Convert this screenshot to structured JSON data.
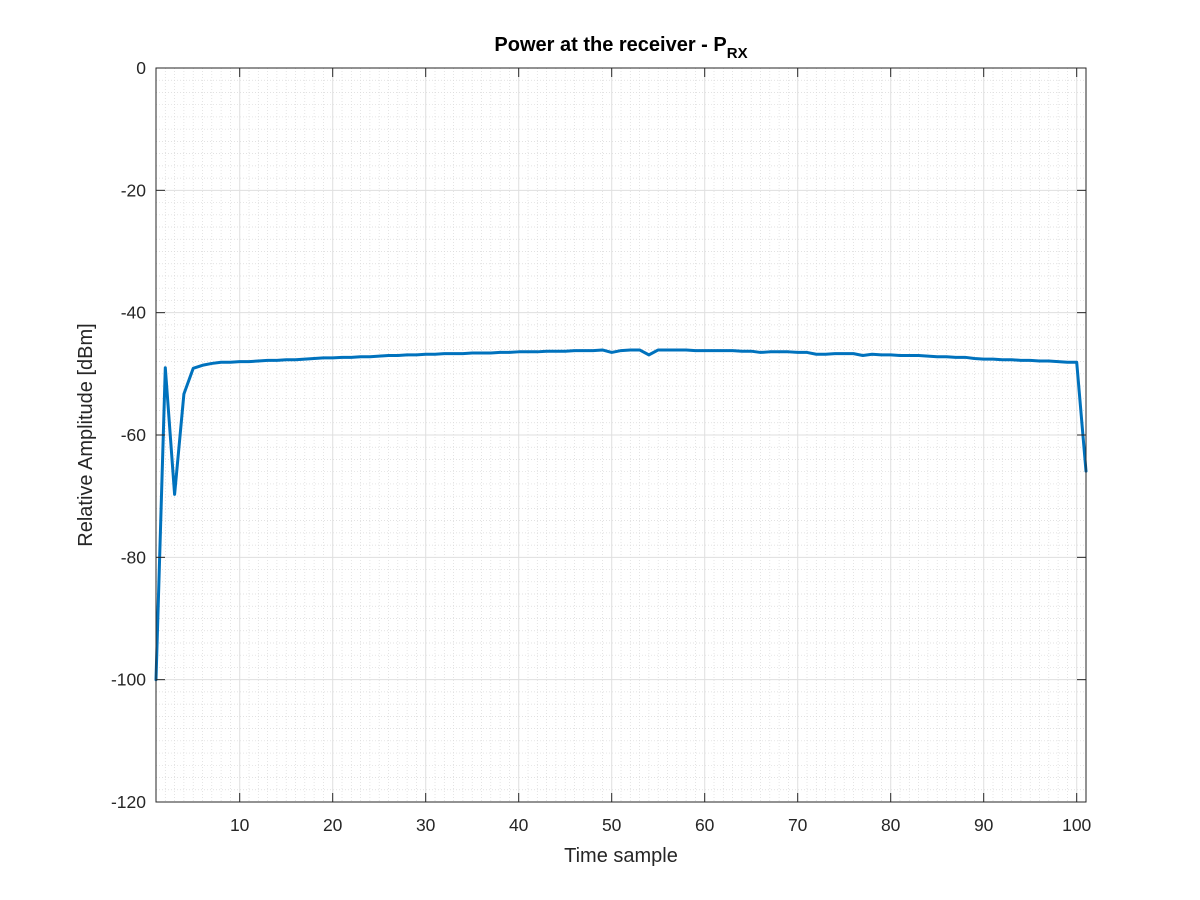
{
  "chart_data": {
    "type": "line",
    "title": "Power at the receiver - P",
    "title_subscript": "RX",
    "xlabel": "Time sample",
    "ylabel": "Relative Amplitude [dBm]",
    "xlim": [
      1,
      101
    ],
    "ylim": [
      -120,
      0
    ],
    "xticks": [
      10,
      20,
      30,
      40,
      50,
      60,
      70,
      80,
      90,
      100
    ],
    "yticks": [
      0,
      -20,
      -40,
      -60,
      -80,
      -100,
      -120
    ],
    "grid": true,
    "minor_grid": true,
    "line_color": "#0072BD",
    "series": [
      {
        "x": [
          1,
          2,
          3,
          4,
          5,
          6,
          7,
          8,
          9,
          10,
          11,
          12,
          13,
          14,
          15,
          16,
          17,
          18,
          19,
          20,
          21,
          22,
          23,
          24,
          25,
          26,
          27,
          28,
          29,
          30,
          31,
          32,
          33,
          34,
          35,
          36,
          37,
          38,
          39,
          40,
          41,
          42,
          43,
          44,
          45,
          46,
          47,
          48,
          49,
          50,
          51,
          52,
          53,
          54,
          55,
          56,
          57,
          58,
          59,
          60,
          61,
          62,
          63,
          64,
          65,
          66,
          67,
          68,
          69,
          70,
          71,
          72,
          73,
          74,
          75,
          76,
          77,
          78,
          79,
          80,
          81,
          82,
          83,
          84,
          85,
          86,
          87,
          88,
          89,
          90,
          91,
          92,
          93,
          94,
          95,
          96,
          97,
          98,
          99,
          100,
          101
        ],
        "y": [
          -100,
          -49,
          -69.7,
          -53.3,
          -49.1,
          -48.6,
          -48.3,
          -48.1,
          -48.1,
          -48.0,
          -48.0,
          -47.9,
          -47.8,
          -47.8,
          -47.7,
          -47.7,
          -47.6,
          -47.5,
          -47.4,
          -47.4,
          -47.3,
          -47.3,
          -47.2,
          -47.2,
          -47.1,
          -47.0,
          -47.0,
          -46.9,
          -46.9,
          -46.8,
          -46.8,
          -46.7,
          -46.7,
          -46.7,
          -46.6,
          -46.6,
          -46.6,
          -46.5,
          -46.5,
          -46.4,
          -46.4,
          -46.4,
          -46.3,
          -46.3,
          -46.3,
          -46.2,
          -46.2,
          -46.2,
          -46.1,
          -46.5,
          -46.2,
          -46.1,
          -46.1,
          -46.9,
          -46.1,
          -46.1,
          -46.1,
          -46.1,
          -46.2,
          -46.2,
          -46.2,
          -46.2,
          -46.2,
          -46.3,
          -46.3,
          -46.5,
          -46.4,
          -46.4,
          -46.4,
          -46.5,
          -46.5,
          -46.8,
          -46.8,
          -46.7,
          -46.7,
          -46.7,
          -47.0,
          -46.8,
          -46.9,
          -46.9,
          -47.0,
          -47.0,
          -47.0,
          -47.1,
          -47.2,
          -47.2,
          -47.3,
          -47.3,
          -47.5,
          -47.6,
          -47.6,
          -47.7,
          -47.7,
          -47.8,
          -47.8,
          -47.9,
          -47.9,
          -48.0,
          -48.1,
          -48.1,
          -65.9
        ]
      }
    ]
  }
}
